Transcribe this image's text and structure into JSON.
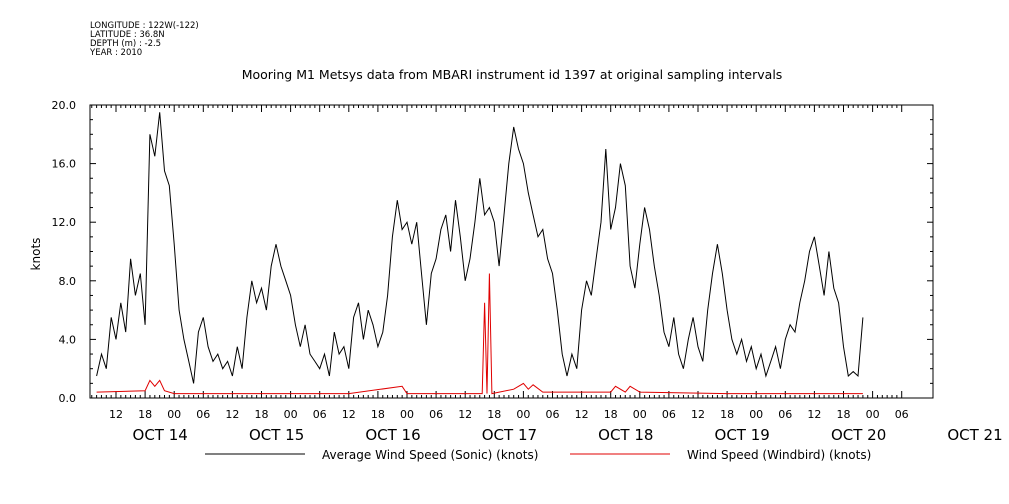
{
  "header": {
    "longitude": "LONGITUDE : 122W(-122)",
    "latitude": "LATITUDE : 36.8N",
    "depth": "DEPTH (m) : -2.5",
    "year": "YEAR : 2010"
  },
  "chart_data": {
    "type": "line",
    "title": "Mooring M1 Metsys data from MBARI instrument id 1397 at original sampling intervals",
    "ylabel": "knots",
    "xlabel": "",
    "ylim": [
      0,
      20
    ],
    "xlim_hours_note": "OCT 14 12:00 to OCT 21 06:00",
    "y_ticks": [
      "0.0",
      "4.0",
      "8.0",
      "12.0",
      "16.0",
      "20.0"
    ],
    "x_hour_ticks": [
      "12",
      "18",
      "00",
      "06",
      "12",
      "18",
      "00",
      "06",
      "12",
      "18",
      "00",
      "06",
      "12",
      "18",
      "00",
      "06",
      "12",
      "18",
      "00",
      "06",
      "12",
      "18",
      "00",
      "06",
      "12",
      "18",
      "00",
      "06"
    ],
    "x_day_labels": [
      "OCT 14",
      "OCT 15",
      "OCT 16",
      "OCT 17",
      "OCT 18",
      "OCT 19",
      "OCT 20",
      "OCT 21"
    ],
    "grid": false,
    "legend": "bottom",
    "series": [
      {
        "name": "Average Wind Speed (Sonic) (knots)",
        "color": "#000000",
        "points": [
          [
            "OCT 14 08:00",
            1.5
          ],
          [
            "OCT 14 09:00",
            3.0
          ],
          [
            "OCT 14 10:00",
            2.0
          ],
          [
            "OCT 14 11:00",
            5.5
          ],
          [
            "OCT 14 12:00",
            4.0
          ],
          [
            "OCT 14 13:00",
            6.5
          ],
          [
            "OCT 14 14:00",
            4.5
          ],
          [
            "OCT 14 15:00",
            9.5
          ],
          [
            "OCT 14 16:00",
            7.0
          ],
          [
            "OCT 14 17:00",
            8.5
          ],
          [
            "OCT 14 18:00",
            5.0
          ],
          [
            "OCT 14 19:00",
            18.0
          ],
          [
            "OCT 14 20:00",
            16.5
          ],
          [
            "OCT 14 21:00",
            19.5
          ],
          [
            "OCT 14 22:00",
            15.5
          ],
          [
            "OCT 14 23:00",
            14.5
          ],
          [
            "OCT 15 00:00",
            10.5
          ],
          [
            "OCT 15 01:00",
            6.0
          ],
          [
            "OCT 15 02:00",
            4.0
          ],
          [
            "OCT 15 03:00",
            2.5
          ],
          [
            "OCT 15 04:00",
            1.0
          ],
          [
            "OCT 15 05:00",
            4.5
          ],
          [
            "OCT 15 06:00",
            5.5
          ],
          [
            "OCT 15 07:00",
            3.5
          ],
          [
            "OCT 15 08:00",
            2.5
          ],
          [
            "OCT 15 09:00",
            3.0
          ],
          [
            "OCT 15 10:00",
            2.0
          ],
          [
            "OCT 15 11:00",
            2.5
          ],
          [
            "OCT 15 12:00",
            1.5
          ],
          [
            "OCT 15 13:00",
            3.5
          ],
          [
            "OCT 15 14:00",
            2.0
          ],
          [
            "OCT 15 15:00",
            5.5
          ],
          [
            "OCT 15 16:00",
            8.0
          ],
          [
            "OCT 15 17:00",
            6.5
          ],
          [
            "OCT 15 18:00",
            7.5
          ],
          [
            "OCT 15 19:00",
            6.0
          ],
          [
            "OCT 15 20:00",
            9.0
          ],
          [
            "OCT 15 21:00",
            10.5
          ],
          [
            "OCT 15 22:00",
            9.0
          ],
          [
            "OCT 15 23:00",
            8.0
          ],
          [
            "OCT 16 00:00",
            7.0
          ],
          [
            "OCT 16 01:00",
            5.0
          ],
          [
            "OCT 16 02:00",
            3.5
          ],
          [
            "OCT 16 03:00",
            5.0
          ],
          [
            "OCT 16 04:00",
            3.0
          ],
          [
            "OCT 16 05:00",
            2.5
          ],
          [
            "OCT 16 06:00",
            2.0
          ],
          [
            "OCT 16 07:00",
            3.0
          ],
          [
            "OCT 16 08:00",
            1.5
          ],
          [
            "OCT 16 09:00",
            4.5
          ],
          [
            "OCT 16 10:00",
            3.0
          ],
          [
            "OCT 16 11:00",
            3.5
          ],
          [
            "OCT 16 12:00",
            2.0
          ],
          [
            "OCT 16 13:00",
            5.5
          ],
          [
            "OCT 16 14:00",
            6.5
          ],
          [
            "OCT 16 15:00",
            4.0
          ],
          [
            "OCT 16 16:00",
            6.0
          ],
          [
            "OCT 16 17:00",
            5.0
          ],
          [
            "OCT 16 18:00",
            3.5
          ],
          [
            "OCT 16 19:00",
            4.5
          ],
          [
            "OCT 16 20:00",
            7.0
          ],
          [
            "OCT 16 21:00",
            11.0
          ],
          [
            "OCT 16 22:00",
            13.5
          ],
          [
            "OCT 16 23:00",
            11.5
          ],
          [
            "OCT 17 00:00",
            12.0
          ],
          [
            "OCT 17 01:00",
            10.5
          ],
          [
            "OCT 17 02:00",
            12.0
          ],
          [
            "OCT 17 03:00",
            8.5
          ],
          [
            "OCT 17 04:00",
            5.0
          ],
          [
            "OCT 17 05:00",
            8.5
          ],
          [
            "OCT 17 06:00",
            9.5
          ],
          [
            "OCT 17 07:00",
            11.5
          ],
          [
            "OCT 17 08:00",
            12.5
          ],
          [
            "OCT 17 09:00",
            10.0
          ],
          [
            "OCT 17 10:00",
            13.5
          ],
          [
            "OCT 17 11:00",
            11.0
          ],
          [
            "OCT 17 12:00",
            8.0
          ],
          [
            "OCT 17 13:00",
            9.5
          ],
          [
            "OCT 17 14:00",
            12.0
          ],
          [
            "OCT 17 15:00",
            15.0
          ],
          [
            "OCT 17 16:00",
            12.5
          ],
          [
            "OCT 17 17:00",
            13.0
          ],
          [
            "OCT 17 18:00",
            12.0
          ],
          [
            "OCT 17 19:00",
            9.0
          ],
          [
            "OCT 17 20:00",
            12.5
          ],
          [
            "OCT 17 21:00",
            16.0
          ],
          [
            "OCT 17 22:00",
            18.5
          ],
          [
            "OCT 17 23:00",
            17.0
          ],
          [
            "OCT 18 00:00",
            16.0
          ],
          [
            "OCT 18 01:00",
            14.0
          ],
          [
            "OCT 18 02:00",
            12.5
          ],
          [
            "OCT 18 03:00",
            11.0
          ],
          [
            "OCT 18 04:00",
            11.5
          ],
          [
            "OCT 18 05:00",
            9.5
          ],
          [
            "OCT 18 06:00",
            8.5
          ],
          [
            "OCT 18 07:00",
            6.0
          ],
          [
            "OCT 18 08:00",
            3.0
          ],
          [
            "OCT 18 09:00",
            1.5
          ],
          [
            "OCT 18 10:00",
            3.0
          ],
          [
            "OCT 18 11:00",
            2.0
          ],
          [
            "OCT 18 12:00",
            6.0
          ],
          [
            "OCT 18 13:00",
            8.0
          ],
          [
            "OCT 18 14:00",
            7.0
          ],
          [
            "OCT 18 15:00",
            9.5
          ],
          [
            "OCT 18 16:00",
            12.0
          ],
          [
            "OCT 18 17:00",
            17.0
          ],
          [
            "OCT 18 18:00",
            11.5
          ],
          [
            "OCT 18 19:00",
            13.0
          ],
          [
            "OCT 18 20:00",
            16.0
          ],
          [
            "OCT 18 21:00",
            14.5
          ],
          [
            "OCT 18 22:00",
            9.0
          ],
          [
            "OCT 18 23:00",
            7.5
          ],
          [
            "OCT 19 00:00",
            10.5
          ],
          [
            "OCT 19 01:00",
            13.0
          ],
          [
            "OCT 19 02:00",
            11.5
          ],
          [
            "OCT 19 03:00",
            9.0
          ],
          [
            "OCT 19 04:00",
            7.0
          ],
          [
            "OCT 19 05:00",
            4.5
          ],
          [
            "OCT 19 06:00",
            3.5
          ],
          [
            "OCT 19 07:00",
            5.5
          ],
          [
            "OCT 19 08:00",
            3.0
          ],
          [
            "OCT 19 09:00",
            2.0
          ],
          [
            "OCT 19 10:00",
            4.0
          ],
          [
            "OCT 19 11:00",
            5.5
          ],
          [
            "OCT 19 12:00",
            3.5
          ],
          [
            "OCT 19 13:00",
            2.5
          ],
          [
            "OCT 19 14:00",
            6.0
          ],
          [
            "OCT 19 15:00",
            8.5
          ],
          [
            "OCT 19 16:00",
            10.5
          ],
          [
            "OCT 19 17:00",
            8.5
          ],
          [
            "OCT 19 18:00",
            6.0
          ],
          [
            "OCT 19 19:00",
            4.0
          ],
          [
            "OCT 19 20:00",
            3.0
          ],
          [
            "OCT 19 21:00",
            4.0
          ],
          [
            "OCT 19 22:00",
            2.5
          ],
          [
            "OCT 19 23:00",
            3.5
          ],
          [
            "OCT 20 00:00",
            2.0
          ],
          [
            "OCT 20 01:00",
            3.0
          ],
          [
            "OCT 20 02:00",
            1.5
          ],
          [
            "OCT 20 03:00",
            2.5
          ],
          [
            "OCT 20 04:00",
            3.5
          ],
          [
            "OCT 20 05:00",
            2.0
          ],
          [
            "OCT 20 06:00",
            4.0
          ],
          [
            "OCT 20 07:00",
            5.0
          ],
          [
            "OCT 20 08:00",
            4.5
          ],
          [
            "OCT 20 09:00",
            6.5
          ],
          [
            "OCT 20 10:00",
            8.0
          ],
          [
            "OCT 20 11:00",
            10.0
          ],
          [
            "OCT 20 12:00",
            11.0
          ],
          [
            "OCT 20 13:00",
            9.0
          ],
          [
            "OCT 20 14:00",
            7.0
          ],
          [
            "OCT 20 15:00",
            10.0
          ],
          [
            "OCT 20 16:00",
            7.5
          ],
          [
            "OCT 20 17:00",
            6.5
          ],
          [
            "OCT 20 18:00",
            3.5
          ],
          [
            "OCT 20 19:00",
            1.5
          ],
          [
            "OCT 20 20:00",
            1.8
          ],
          [
            "OCT 20 21:00",
            1.5
          ],
          [
            "OCT 20 22:00",
            5.5
          ]
        ]
      },
      {
        "name": "Wind Speed (Windbird) (knots)",
        "color": "#e00000",
        "points": [
          [
            "OCT 14 08:00",
            0.4
          ],
          [
            "OCT 14 18:00",
            0.5
          ],
          [
            "OCT 14 19:00",
            1.2
          ],
          [
            "OCT 14 20:00",
            0.8
          ],
          [
            "OCT 14 21:00",
            1.2
          ],
          [
            "OCT 14 22:00",
            0.5
          ],
          [
            "OCT 15 00:00",
            0.3
          ],
          [
            "OCT 16 12:00",
            0.3
          ],
          [
            "OCT 16 23:00",
            0.8
          ],
          [
            "OCT 17 00:00",
            0.3
          ],
          [
            "OCT 17 15:30",
            0.3
          ],
          [
            "OCT 17 16:00",
            6.5
          ],
          [
            "OCT 17 16:30",
            0.3
          ],
          [
            "OCT 17 17:00",
            8.5
          ],
          [
            "OCT 17 17:30",
            0.3
          ],
          [
            "OCT 17 22:00",
            0.6
          ],
          [
            "OCT 18 00:00",
            1.0
          ],
          [
            "OCT 18 01:00",
            0.6
          ],
          [
            "OCT 18 02:00",
            0.9
          ],
          [
            "OCT 18 04:00",
            0.4
          ],
          [
            "OCT 18 18:00",
            0.4
          ],
          [
            "OCT 18 19:00",
            0.8
          ],
          [
            "OCT 18 21:00",
            0.4
          ],
          [
            "OCT 18 22:00",
            0.8
          ],
          [
            "OCT 19 00:00",
            0.4
          ],
          [
            "OCT 19 18:00",
            0.3
          ],
          [
            "OCT 20 22:00",
            0.3
          ]
        ]
      }
    ]
  }
}
